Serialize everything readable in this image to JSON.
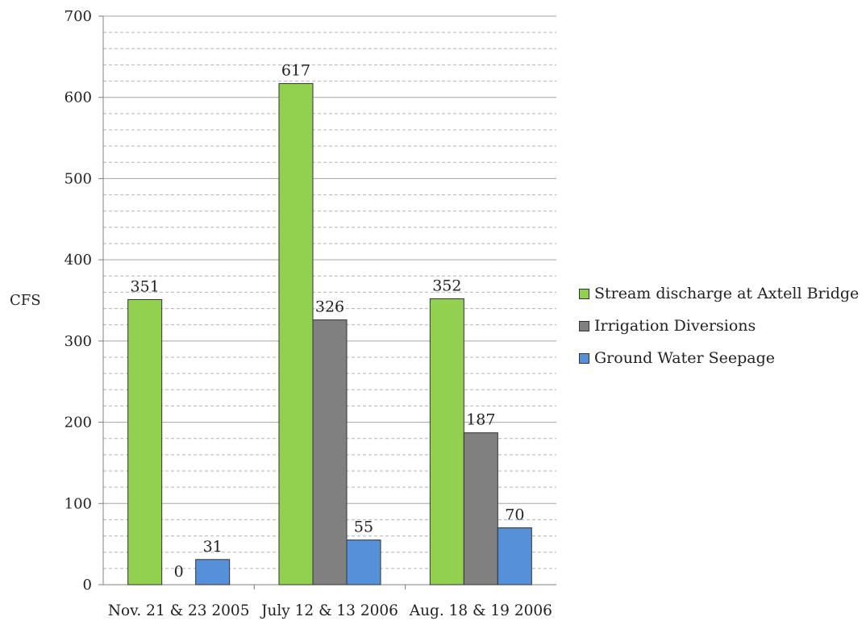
{
  "chart_data": {
    "type": "bar",
    "title": "",
    "xlabel": "",
    "ylabel": "CFS",
    "ylim": [
      0,
      700
    ],
    "yticks": [
      0,
      100,
      200,
      300,
      400,
      500,
      600,
      700
    ],
    "grid": "major and minor horizontal",
    "legend_position": "right",
    "categories": [
      "Nov. 21 & 23 2005",
      "July 12 & 13 2006",
      "Aug. 18 & 19 2006"
    ],
    "series": [
      {
        "name": "Stream discharge at Axtell Bridge",
        "color": "#92d050",
        "values": [
          351,
          617,
          352
        ]
      },
      {
        "name": "Irrigation Diversions",
        "color": "#808080",
        "values": [
          0,
          326,
          187
        ]
      },
      {
        "name": "Ground Water Seepage",
        "color": "#5590d8",
        "values": [
          31,
          55,
          70
        ]
      }
    ]
  }
}
